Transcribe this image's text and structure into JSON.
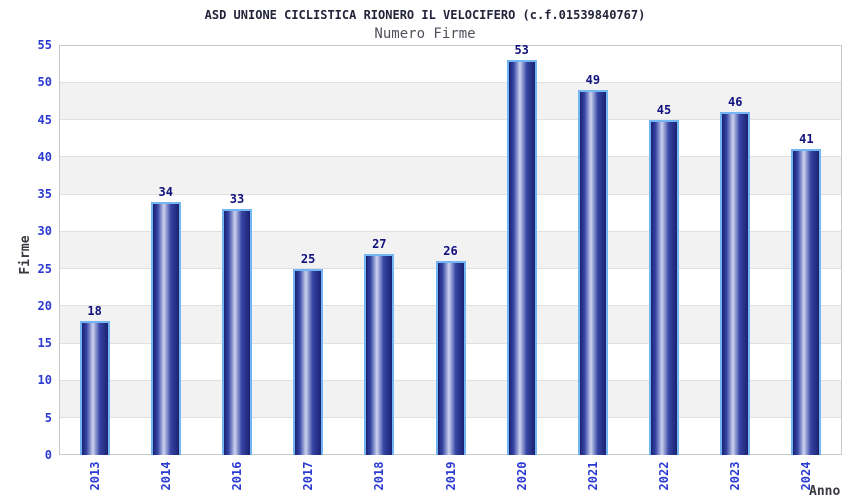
{
  "chart_data": {
    "type": "bar",
    "title": "ASD UNIONE CICLISTICA RIONERO IL VELOCIFERO (c.f.01539840767)",
    "subtitle": "Numero Firme",
    "xlabel": "Anno",
    "ylabel": "Firme",
    "categories": [
      "2013",
      "2014",
      "2016",
      "2017",
      "2018",
      "2019",
      "2020",
      "2021",
      "2022",
      "2023",
      "2024"
    ],
    "values": [
      18,
      34,
      33,
      25,
      27,
      26,
      53,
      49,
      45,
      46,
      41
    ],
    "ylim": [
      0,
      55
    ],
    "ytick_step": 5,
    "grid": true,
    "legend": "none",
    "colors": {
      "bar_edge": "#74b6f4",
      "bar_dark": "#1a2170",
      "bar_mid": "#3646a6",
      "bar_light": "#ccd2ee",
      "value_label": "#11117d",
      "tick_label": "#2b3bd2",
      "title": "#23233a",
      "subtitle": "#50505c",
      "axis_label": "#3a3a42",
      "band": "#ffffff",
      "band_alt": "#f2f2f2",
      "gridline": "#e0e0e0",
      "plot_border": "#c9c9c9"
    }
  }
}
